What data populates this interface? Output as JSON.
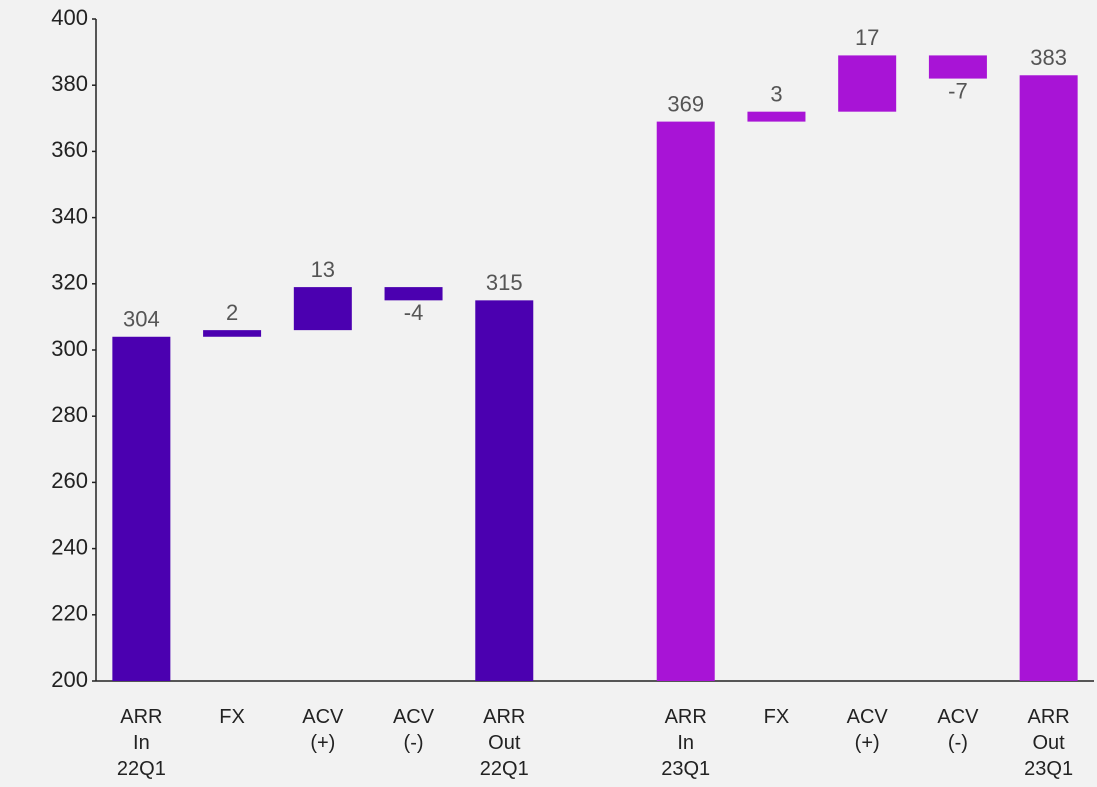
{
  "chart_data": {
    "type": "waterfall",
    "categories": [
      "ARR In 22Q1",
      "FX",
      "ACV (+)",
      "ACV (-)",
      "ARR Out 22Q1",
      null,
      "ARR In 23Q1",
      "FX",
      "ACV (+)",
      "ACV (-)",
      "ARR Out 23Q1"
    ],
    "values": [
      304,
      2,
      13,
      -4,
      315,
      null,
      369,
      3,
      17,
      -7,
      383
    ],
    "measure": [
      "absolute",
      "relative",
      "relative",
      "relative",
      "absolute",
      null,
      "absolute",
      "relative",
      "relative",
      "relative",
      "absolute"
    ],
    "colors": [
      "#4b00b0",
      "#4b00b0",
      "#4b00b0",
      "#4b00b0",
      "#4b00b0",
      null,
      "#a814d6",
      "#a814d6",
      "#a814d6",
      "#a814d6",
      "#a814d6"
    ],
    "ylim": [
      200,
      400
    ],
    "yticks": [
      200,
      220,
      240,
      260,
      280,
      300,
      320,
      340,
      360,
      380,
      400
    ],
    "grid": false
  }
}
